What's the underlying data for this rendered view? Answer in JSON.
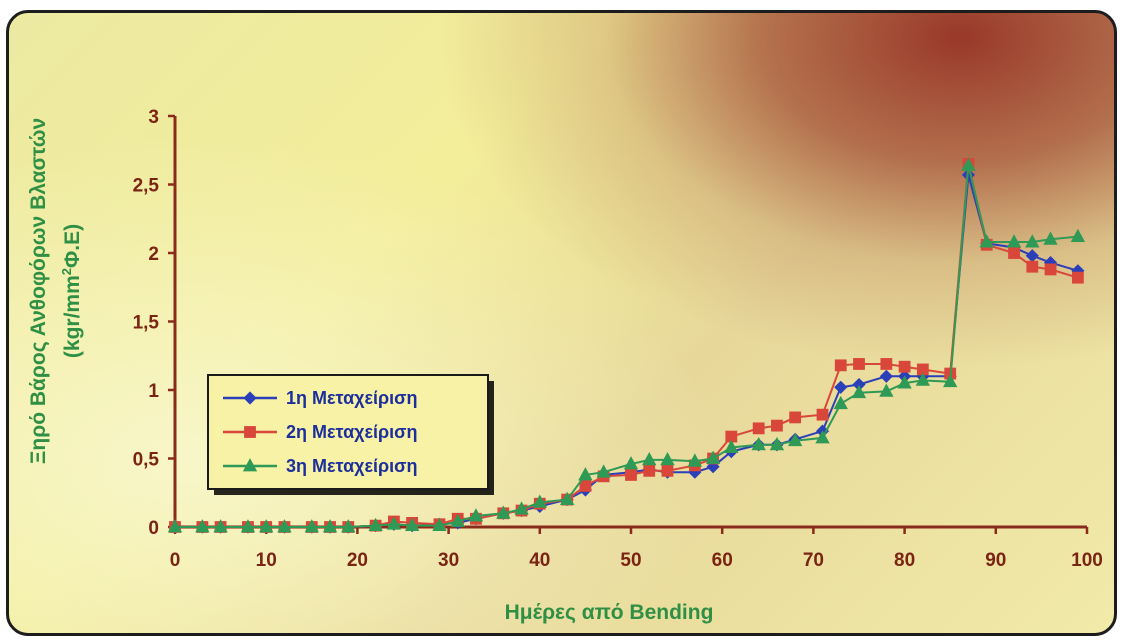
{
  "chart_data": {
    "type": "line",
    "xlabel": "Ημέρες από Bending",
    "ylabel": "Ξηρό Βάρος Ανθοφόρων Βλαστών (kgr/mm²Φ.Ε)",
    "ylabel_line1": "Ξηρό Βάρος Ανθοφόρων Βλαστών",
    "ylabel_line2_pre": "(kgr/mm",
    "ylabel_line2_sup": "2",
    "ylabel_line2_post": "Φ.Ε)",
    "xlim": [
      0,
      100
    ],
    "ylim": [
      0,
      3
    ],
    "xticks": [
      0,
      10,
      20,
      30,
      40,
      50,
      60,
      70,
      80,
      90,
      100
    ],
    "yticks": [
      0,
      0.5,
      1,
      1.5,
      2,
      2.5,
      3
    ],
    "ytick_labels": [
      "0",
      "0,5",
      "1",
      "1,5",
      "2",
      "2,5",
      "3"
    ],
    "grid": false,
    "legend_position": "lower-left",
    "series": [
      {
        "name": "1η Μεταχείριση",
        "color": "#2b3fb8",
        "marker": "diamond",
        "x": [
          0,
          3,
          5,
          8,
          10,
          12,
          15,
          17,
          19,
          22,
          24,
          26,
          29,
          31,
          33,
          36,
          38,
          40,
          43,
          45,
          47,
          50,
          52,
          54,
          57,
          59,
          61,
          64,
          66,
          68,
          71,
          73,
          75,
          78,
          80,
          82,
          85,
          87,
          89,
          92,
          94,
          96,
          99
        ],
        "y": [
          0,
          0,
          0,
          0,
          0,
          0,
          0,
          0,
          0,
          0.01,
          0.02,
          0.01,
          0.02,
          0.03,
          0.06,
          0.1,
          0.12,
          0.15,
          0.2,
          0.27,
          0.38,
          0.4,
          0.42,
          0.4,
          0.4,
          0.44,
          0.55,
          0.6,
          0.6,
          0.64,
          0.7,
          1.02,
          1.04,
          1.1,
          1.1,
          1.1,
          1.1,
          2.57,
          2.07,
          2.04,
          1.98,
          1.93,
          1.87
        ]
      },
      {
        "name": "2η Μεταχείριση",
        "color": "#d9473a",
        "marker": "square",
        "x": [
          0,
          3,
          5,
          8,
          10,
          12,
          15,
          17,
          19,
          22,
          24,
          26,
          29,
          31,
          33,
          36,
          38,
          40,
          43,
          45,
          47,
          50,
          52,
          54,
          57,
          59,
          61,
          64,
          66,
          68,
          71,
          73,
          75,
          78,
          80,
          82,
          85,
          87,
          89,
          92,
          94,
          96,
          99
        ],
        "y": [
          0,
          0,
          0,
          0,
          0,
          0,
          0,
          0,
          0,
          0.01,
          0.04,
          0.03,
          0.02,
          0.06,
          0.06,
          0.1,
          0.12,
          0.17,
          0.2,
          0.3,
          0.37,
          0.38,
          0.41,
          0.41,
          0.45,
          0.5,
          0.66,
          0.72,
          0.74,
          0.8,
          0.82,
          1.18,
          1.19,
          1.19,
          1.17,
          1.15,
          1.12,
          2.65,
          2.06,
          2.0,
          1.9,
          1.88,
          1.82
        ]
      },
      {
        "name": "3η Μεταχείριση",
        "color": "#2f9a55",
        "marker": "triangle",
        "x": [
          0,
          3,
          5,
          8,
          10,
          12,
          15,
          17,
          19,
          22,
          24,
          26,
          29,
          31,
          33,
          36,
          38,
          40,
          43,
          45,
          47,
          50,
          52,
          54,
          57,
          59,
          61,
          64,
          66,
          68,
          71,
          73,
          75,
          78,
          80,
          82,
          85,
          87,
          89,
          92,
          94,
          96,
          99
        ],
        "y": [
          0,
          0,
          0,
          0,
          0,
          0,
          0,
          0,
          0,
          0.01,
          0.02,
          0.01,
          0.01,
          0.04,
          0.08,
          0.1,
          0.13,
          0.18,
          0.2,
          0.38,
          0.4,
          0.46,
          0.49,
          0.49,
          0.48,
          0.5,
          0.58,
          0.6,
          0.6,
          0.63,
          0.65,
          0.9,
          0.98,
          0.99,
          1.05,
          1.07,
          1.06,
          2.64,
          2.08,
          2.08,
          2.08,
          2.1,
          2.12
        ]
      }
    ]
  }
}
